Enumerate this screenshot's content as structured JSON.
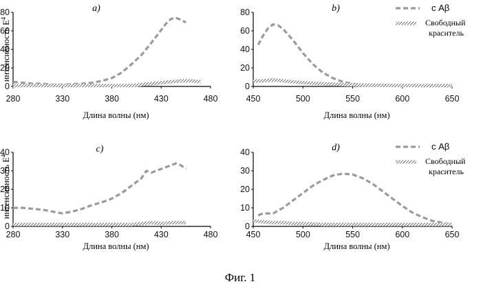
{
  "caption": "Фиг. 1",
  "colors": {
    "series1": "#9a9a9a",
    "series2": "#5a5a5a",
    "axis": "#000000"
  },
  "chart_data": [
    {
      "panel": "a)",
      "type": "line",
      "xlabel": "Длина волны (нм)",
      "ylabel": "интенсивность E",
      "ylabel_sup": "4",
      "xlim": [
        280,
        480
      ],
      "ylim": [
        0,
        80
      ],
      "xticks": [
        280,
        330,
        380,
        430,
        480
      ],
      "yticks": [
        0,
        20,
        40,
        60,
        80
      ],
      "legend": "none",
      "series": [
        {
          "style": "dashed",
          "x": [
            280,
            290,
            300,
            310,
            320,
            330,
            340,
            350,
            360,
            370,
            380,
            390,
            400,
            410,
            420,
            430,
            435,
            440,
            445,
            450,
            455
          ],
          "y": [
            5,
            4,
            3,
            3,
            2,
            2,
            2.5,
            3,
            4,
            6,
            9,
            15,
            24,
            34,
            47,
            61,
            68,
            73,
            74,
            72,
            69
          ]
        },
        {
          "style": "hatched",
          "x": [
            280,
            300,
            320,
            340,
            360,
            380,
            400,
            410,
            420,
            430,
            440,
            450,
            460,
            470
          ],
          "y": [
            1,
            1,
            1,
            1,
            1,
            1,
            1,
            2,
            3,
            4,
            5,
            6,
            6,
            5
          ]
        }
      ]
    },
    {
      "panel": "b)",
      "type": "line",
      "xlabel": "Длина волны (нм)",
      "ylabel": "",
      "xlim": [
        450,
        650
      ],
      "ylim": [
        0,
        80
      ],
      "xticks": [
        450,
        500,
        550,
        600,
        650
      ],
      "yticks": [
        0,
        20,
        40,
        60,
        80
      ],
      "legend": "top-right",
      "series": [
        {
          "name": "с   Aβ",
          "style": "dashed",
          "x": [
            455,
            460,
            465,
            470,
            475,
            480,
            490,
            500,
            510,
            520,
            530,
            540,
            550,
            560,
            580,
            600,
            620,
            640,
            650
          ],
          "y": [
            45,
            55,
            63,
            67,
            66,
            62,
            50,
            36,
            24,
            15,
            9,
            5,
            3,
            2,
            1,
            0.5,
            0.3,
            0.2,
            0.2
          ]
        },
        {
          "name": "Свободный краситель",
          "style": "hatched",
          "x": [
            450,
            460,
            470,
            480,
            490,
            500,
            520,
            540,
            560,
            600,
            650
          ],
          "y": [
            6,
            6,
            7,
            6,
            5,
            4,
            3,
            2,
            1.5,
            1,
            1
          ]
        }
      ]
    },
    {
      "panel": "c)",
      "type": "line",
      "xlabel": "Длина волны (нм)",
      "ylabel": "интенсивность E",
      "ylabel_sup": "4",
      "xlim": [
        280,
        480
      ],
      "ylim": [
        0,
        40
      ],
      "xticks": [
        280,
        330,
        380,
        430,
        480
      ],
      "yticks": [
        0,
        10,
        20,
        30,
        40
      ],
      "legend": "none",
      "series": [
        {
          "style": "dashed",
          "x": [
            280,
            290,
            300,
            310,
            320,
            330,
            340,
            350,
            360,
            370,
            380,
            390,
            400,
            410,
            415,
            420,
            425,
            430,
            435,
            440,
            445,
            450,
            455
          ],
          "y": [
            10,
            10,
            9.5,
            9,
            8,
            7,
            8,
            9.5,
            11.5,
            13,
            15,
            18,
            22,
            26,
            30,
            29,
            30,
            31,
            32,
            33,
            34,
            33,
            31
          ]
        },
        {
          "style": "hatched",
          "x": [
            280,
            300,
            320,
            340,
            360,
            380,
            400,
            410,
            420,
            430,
            440,
            450,
            455
          ],
          "y": [
            1,
            1,
            1,
            1,
            1,
            1,
            1,
            1.5,
            2,
            1.5,
            2,
            2,
            2
          ]
        }
      ]
    },
    {
      "panel": "d)",
      "type": "line",
      "xlabel": "Длина волны (нм)",
      "ylabel": "",
      "xlim": [
        450,
        650
      ],
      "ylim": [
        0,
        40
      ],
      "xticks": [
        450,
        500,
        550,
        600,
        650
      ],
      "yticks": [
        0,
        10,
        20,
        30,
        40
      ],
      "legend": "top-right",
      "series": [
        {
          "name": "с   Aβ",
          "style": "dashed",
          "x": [
            455,
            460,
            470,
            480,
            490,
            500,
            510,
            520,
            530,
            540,
            550,
            560,
            570,
            580,
            590,
            600,
            610,
            620,
            630,
            640,
            650
          ],
          "y": [
            6,
            7,
            7,
            10,
            14,
            18,
            22,
            25,
            27.5,
            28.5,
            28,
            26,
            23,
            19,
            15,
            11,
            7.5,
            5,
            3,
            2,
            1
          ]
        },
        {
          "name": "Свободный краситель",
          "style": "hatched",
          "x": [
            450,
            460,
            470,
            480,
            490,
            500,
            520,
            540,
            560,
            600,
            650
          ],
          "y": [
            3,
            2.5,
            2,
            2,
            1.5,
            1.5,
            1,
            1,
            1,
            1,
            1
          ]
        }
      ]
    }
  ]
}
